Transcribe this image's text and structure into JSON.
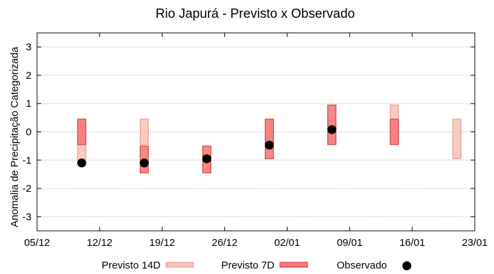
{
  "chart_data": {
    "type": "bar",
    "title": "Rio Japurá - Previsto x Observado",
    "ylabel": "Anomalia de Precipitação Categorizada",
    "xlabel": "",
    "x_range": [
      "2023-12-05",
      "2024-01-23"
    ],
    "x_ticks": [
      {
        "date": "2023-12-05",
        "label": "05/12"
      },
      {
        "date": "2023-12-12",
        "label": "12/12"
      },
      {
        "date": "2023-12-19",
        "label": "19/12"
      },
      {
        "date": "2023-12-26",
        "label": "26/12"
      },
      {
        "date": "2024-01-02",
        "label": "02/01"
      },
      {
        "date": "2024-01-09",
        "label": "09/01"
      },
      {
        "date": "2024-01-16",
        "label": "16/01"
      },
      {
        "date": "2024-01-23",
        "label": "23/01"
      }
    ],
    "ylim": [
      -3.5,
      3.5
    ],
    "y_ticks": [
      -3,
      -2,
      -1,
      0,
      1,
      2,
      3
    ],
    "grid": true,
    "legend_position": "bottom",
    "legend": [
      {
        "label": "Previsto 14D",
        "color": "#f9c3b9",
        "edge": "#e6908b"
      },
      {
        "label": "Previsto 7D",
        "color": "#f87a7a",
        "edge": "#c8322e"
      },
      {
        "label": "Observado",
        "color": "#000000"
      }
    ],
    "series": [
      {
        "name": "Previsto 14D",
        "ranges": [
          {
            "date": "2023-12-10",
            "low": -1.0,
            "high": 0.45
          },
          {
            "date": "2023-12-17",
            "low": -0.45,
            "high": 0.45
          },
          {
            "date": "2023-12-31",
            "low": -0.45,
            "high": 0.45
          },
          {
            "date": "2024-01-07",
            "low": -0.45,
            "high": 0.45
          },
          {
            "date": "2024-01-14",
            "low": -0.45,
            "high": 0.95
          },
          {
            "date": "2024-01-21",
            "low": -0.95,
            "high": 0.45
          }
        ]
      },
      {
        "name": "Previsto 7D",
        "ranges": [
          {
            "date": "2023-12-10",
            "low": -0.45,
            "high": 0.45
          },
          {
            "date": "2023-12-17",
            "low": -1.45,
            "high": -0.5
          },
          {
            "date": "2023-12-24",
            "low": -1.45,
            "high": -0.5
          },
          {
            "date": "2023-12-31",
            "low": -0.95,
            "high": 0.45
          },
          {
            "date": "2024-01-07",
            "low": -0.45,
            "high": 0.95
          },
          {
            "date": "2024-01-14",
            "low": -0.45,
            "high": 0.45
          }
        ]
      },
      {
        "name": "Observado",
        "points": [
          {
            "date": "2023-12-10",
            "value": -1.1
          },
          {
            "date": "2023-12-17",
            "value": -1.1
          },
          {
            "date": "2023-12-24",
            "value": -0.95
          },
          {
            "date": "2023-12-31",
            "value": -0.47
          },
          {
            "date": "2024-01-07",
            "value": 0.08
          }
        ]
      }
    ]
  }
}
